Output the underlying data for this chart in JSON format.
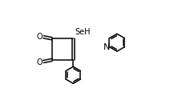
{
  "bg_color": "#ffffff",
  "line_color": "#000000",
  "line_width": 1.1,
  "text_color": "#000000",
  "font_size": 7,
  "SeH_label": "SeH",
  "O1_label": "O",
  "O2_label": "O",
  "N_label": "N"
}
